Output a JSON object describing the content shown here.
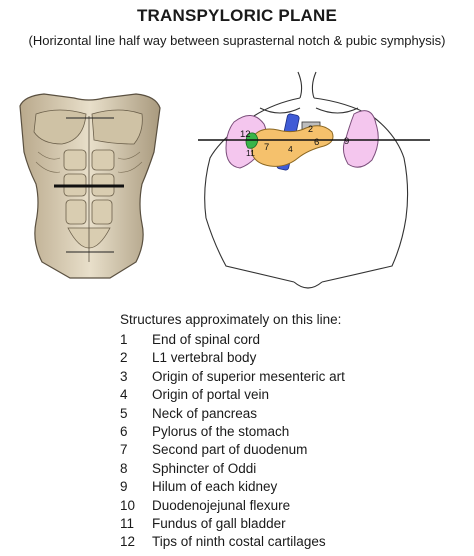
{
  "title": "TRANSPYLORIC PLANE",
  "subtitle": "(Horizontal line half way between suprasternal notch & pubic symphysis)",
  "diagram_labels": [
    "12",
    "11",
    "7",
    "4",
    "2",
    "6",
    "9"
  ],
  "list_heading": "Structures approximately on this line:",
  "structures": [
    {
      "num": "1",
      "text": "End of spinal cord"
    },
    {
      "num": "2",
      "text": "L1 vertebral body"
    },
    {
      "num": "3",
      "text": "Origin of superior mesenteric art"
    },
    {
      "num": "4",
      "text": "Origin of portal vein"
    },
    {
      "num": "5",
      "text": "Neck of pancreas"
    },
    {
      "num": "6",
      "text": "Pylorus of the stomach"
    },
    {
      "num": "7",
      "text": "Second part of duodenum"
    },
    {
      "num": "8",
      "text": "Sphincter of Oddi"
    },
    {
      "num": "9",
      "text": "Hilum of each kidney"
    },
    {
      "num": "10",
      "text": "Duodenojejunal flexure"
    },
    {
      "num": "11",
      "text": "Fundus of gall bladder"
    },
    {
      "num": "12",
      "text": "Tips of ninth costal cartilages"
    }
  ],
  "colors": {
    "kidney": "#f4c6ee",
    "pancreas": "#f5c16c",
    "portal_vein": "#3f5bd6",
    "gall_bladder": "#39b54a",
    "vertebra": "#bdbdbd"
  }
}
